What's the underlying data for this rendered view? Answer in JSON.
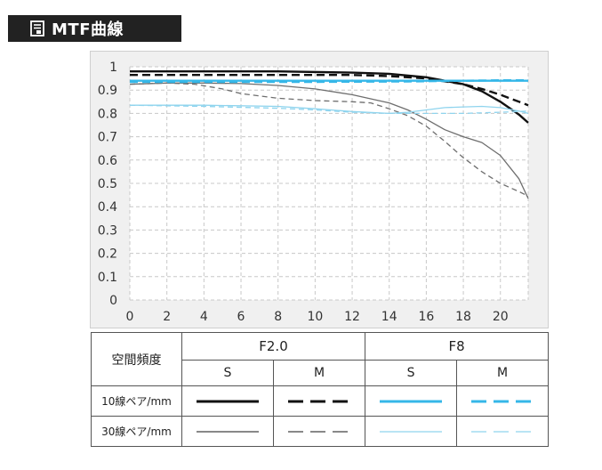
{
  "header": {
    "title": "MTF曲線",
    "icon": "document-icon"
  },
  "colors": {
    "black": "#111111",
    "gray": "#6e6e6e",
    "blue": "#35b7e8",
    "lightblue": "#8fd4ee",
    "header_bg": "#222222"
  },
  "legend": {
    "spatial_label": "空間頻度",
    "groups": [
      "F2.0",
      "F8"
    ],
    "subheads": [
      "S",
      "M",
      "S",
      "M"
    ],
    "rows": [
      "10線ペア/mm",
      "30線ペア/mm"
    ]
  },
  "chart_data": {
    "type": "line",
    "title": "",
    "xlabel": "",
    "ylabel": "",
    "xlim": [
      0,
      21.5
    ],
    "ylim": [
      0,
      1
    ],
    "xticks": [
      "0",
      "2",
      "4",
      "6",
      "8",
      "10",
      "12",
      "14",
      "16",
      "18",
      "20"
    ],
    "yticks": [
      "0",
      "0.1",
      "0.2",
      "0.3",
      "0.4",
      "0.5",
      "0.6",
      "0.7",
      "0.8",
      "0.9",
      "1"
    ],
    "grid": "dashed",
    "series": [
      {
        "aperture": "F2.0",
        "frequency": "10",
        "orientation": "S",
        "style": "solid",
        "color": "#111111",
        "width": 2.4,
        "points": [
          [
            0,
            0.98
          ],
          [
            4,
            0.98
          ],
          [
            8,
            0.98
          ],
          [
            12,
            0.975
          ],
          [
            14,
            0.97
          ],
          [
            16,
            0.955
          ],
          [
            17,
            0.94
          ],
          [
            18,
            0.925
          ],
          [
            19,
            0.895
          ],
          [
            20,
            0.85
          ],
          [
            21,
            0.795
          ],
          [
            21.5,
            0.76
          ]
        ]
      },
      {
        "aperture": "F2.0",
        "frequency": "10",
        "orientation": "M",
        "style": "dashed",
        "color": "#111111",
        "width": 2.4,
        "points": [
          [
            0,
            0.965
          ],
          [
            4,
            0.965
          ],
          [
            8,
            0.965
          ],
          [
            10,
            0.965
          ],
          [
            12,
            0.965
          ],
          [
            14,
            0.96
          ],
          [
            16,
            0.95
          ],
          [
            18,
            0.925
          ],
          [
            19,
            0.905
          ],
          [
            20,
            0.88
          ],
          [
            21,
            0.85
          ],
          [
            21.5,
            0.835
          ]
        ]
      },
      {
        "aperture": "F2.0",
        "frequency": "30",
        "orientation": "S",
        "style": "solid",
        "color": "#6e6e6e",
        "width": 1.3,
        "points": [
          [
            0,
            0.925
          ],
          [
            2,
            0.93
          ],
          [
            4,
            0.93
          ],
          [
            6,
            0.928
          ],
          [
            8,
            0.92
          ],
          [
            10,
            0.905
          ],
          [
            12,
            0.88
          ],
          [
            14,
            0.845
          ],
          [
            15,
            0.815
          ],
          [
            16,
            0.775
          ],
          [
            17,
            0.73
          ],
          [
            18,
            0.7
          ],
          [
            19,
            0.675
          ],
          [
            20,
            0.62
          ],
          [
            21,
            0.52
          ],
          [
            21.5,
            0.435
          ]
        ]
      },
      {
        "aperture": "F2.0",
        "frequency": "30",
        "orientation": "M",
        "style": "dashed",
        "color": "#6e6e6e",
        "width": 1.3,
        "points": [
          [
            0,
            0.925
          ],
          [
            2,
            0.93
          ],
          [
            3.5,
            0.925
          ],
          [
            5,
            0.905
          ],
          [
            6,
            0.885
          ],
          [
            8,
            0.865
          ],
          [
            10,
            0.855
          ],
          [
            12,
            0.85
          ],
          [
            13,
            0.845
          ],
          [
            14,
            0.82
          ],
          [
            15,
            0.79
          ],
          [
            16,
            0.745
          ],
          [
            17,
            0.68
          ],
          [
            18,
            0.61
          ],
          [
            19,
            0.55
          ],
          [
            20,
            0.5
          ],
          [
            21,
            0.465
          ],
          [
            21.5,
            0.445
          ]
        ]
      },
      {
        "aperture": "F8",
        "frequency": "10",
        "orientation": "S",
        "style": "solid",
        "color": "#35b7e8",
        "width": 2.4,
        "points": [
          [
            0,
            0.94
          ],
          [
            5,
            0.94
          ],
          [
            10,
            0.94
          ],
          [
            15,
            0.94
          ],
          [
            20,
            0.94
          ],
          [
            21.5,
            0.94
          ]
        ]
      },
      {
        "aperture": "F8",
        "frequency": "10",
        "orientation": "M",
        "style": "dashed",
        "color": "#35b7e8",
        "width": 2.4,
        "points": [
          [
            0,
            0.935
          ],
          [
            5,
            0.935
          ],
          [
            10,
            0.935
          ],
          [
            15,
            0.937
          ],
          [
            18,
            0.94
          ],
          [
            20,
            0.942
          ],
          [
            21.5,
            0.942
          ]
        ]
      },
      {
        "aperture": "F8",
        "frequency": "30",
        "orientation": "S",
        "style": "solid",
        "color": "#8fd4ee",
        "width": 1.3,
        "points": [
          [
            0,
            0.835
          ],
          [
            4,
            0.835
          ],
          [
            8,
            0.83
          ],
          [
            10,
            0.82
          ],
          [
            12,
            0.808
          ],
          [
            14,
            0.8
          ],
          [
            15,
            0.805
          ],
          [
            16,
            0.815
          ],
          [
            17,
            0.825
          ],
          [
            18,
            0.828
          ],
          [
            19,
            0.83
          ],
          [
            20,
            0.825
          ],
          [
            21,
            0.81
          ],
          [
            21.5,
            0.8
          ]
        ]
      },
      {
        "aperture": "F8",
        "frequency": "30",
        "orientation": "M",
        "style": "dashed",
        "color": "#8fd4ee",
        "width": 1.3,
        "points": [
          [
            0,
            0.835
          ],
          [
            4,
            0.83
          ],
          [
            8,
            0.822
          ],
          [
            10,
            0.815
          ],
          [
            12,
            0.805
          ],
          [
            14,
            0.8
          ],
          [
            16,
            0.8
          ],
          [
            18,
            0.8
          ],
          [
            20,
            0.805
          ],
          [
            21.5,
            0.81
          ]
        ]
      }
    ]
  }
}
